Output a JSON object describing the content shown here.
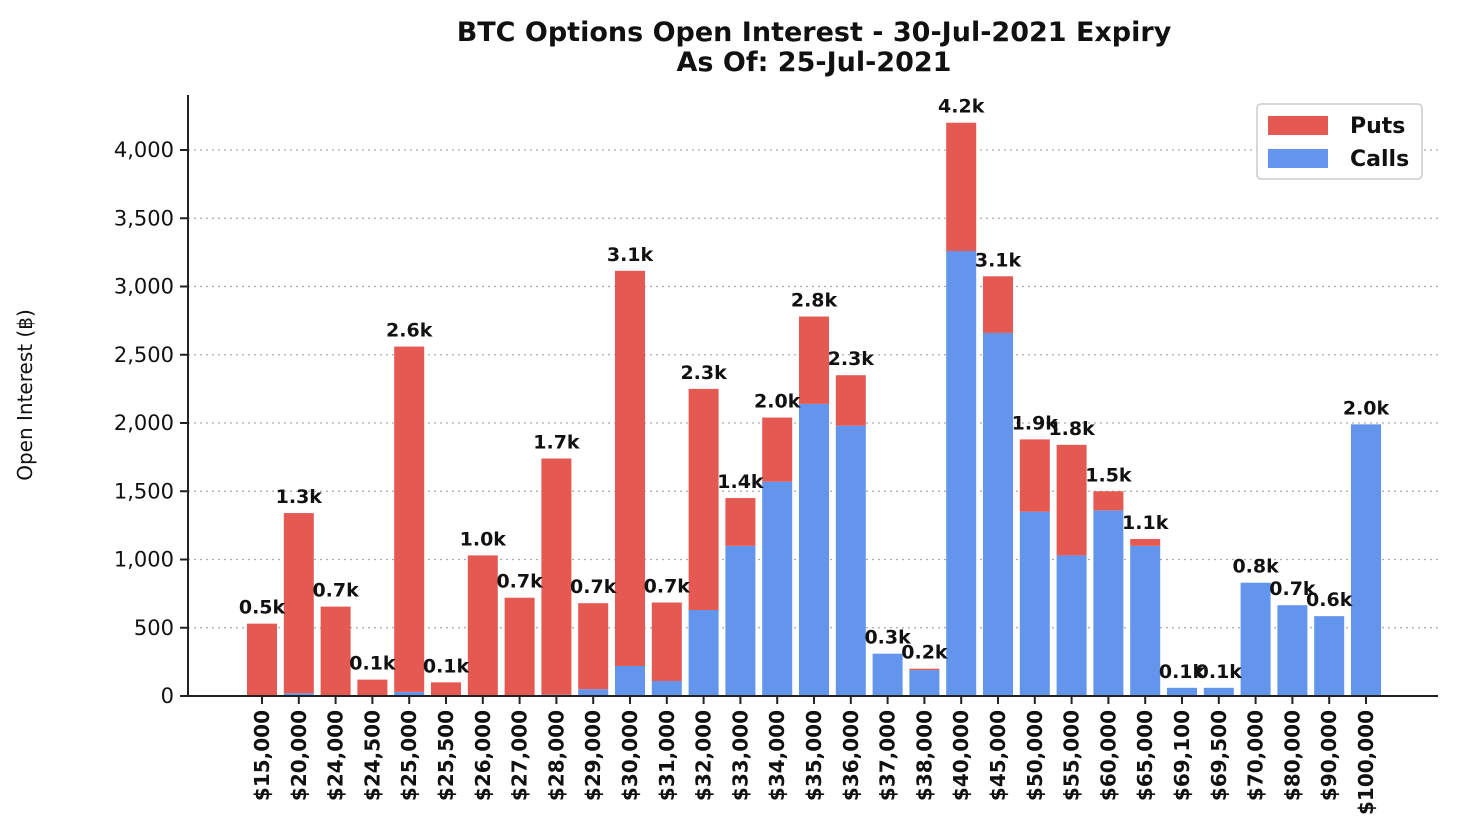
{
  "chart_data": {
    "type": "bar",
    "stacked": true,
    "title": "BTC Options Open Interest - 30-Jul-2021 Expiry",
    "subtitle": "As Of: 25-Jul-2021",
    "xlabel": "",
    "ylabel": "Open Interest (฿)",
    "ylim": [
      0,
      4400
    ],
    "yticks": [
      0,
      500,
      1000,
      1500,
      2000,
      2500,
      3000,
      3500,
      4000
    ],
    "ytick_labels": [
      "0",
      "500",
      "1,000",
      "1,500",
      "2,000",
      "2,500",
      "3,000",
      "3,500",
      "4,000"
    ],
    "grid": "horizontal-dotted",
    "legend_position": "top-right",
    "categories": [
      "$15,000",
      "$20,000",
      "$24,000",
      "$24,500",
      "$25,000",
      "$25,500",
      "$26,000",
      "$27,000",
      "$28,000",
      "$29,000",
      "$30,000",
      "$31,000",
      "$32,000",
      "$33,000",
      "$34,000",
      "$35,000",
      "$36,000",
      "$37,000",
      "$38,000",
      "$40,000",
      "$45,000",
      "$50,000",
      "$55,000",
      "$60,000",
      "$65,000",
      "$69,100",
      "$69,500",
      "$70,000",
      "$80,000",
      "$90,000",
      "$100,000"
    ],
    "series": [
      {
        "name": "Calls",
        "color": "#6495ED",
        "values": [
          0,
          20,
          0,
          0,
          30,
          0,
          0,
          0,
          10,
          50,
          220,
          110,
          630,
          1100,
          1570,
          2140,
          1980,
          310,
          190,
          3260,
          2660,
          1350,
          1030,
          1360,
          1100,
          60,
          60,
          830,
          665,
          585,
          1990
        ]
      },
      {
        "name": "Puts",
        "color": "#E45A53",
        "values": [
          530,
          1320,
          655,
          120,
          2530,
          100,
          1030,
          720,
          1730,
          630,
          2895,
          575,
          1620,
          350,
          470,
          640,
          370,
          0,
          10,
          940,
          415,
          530,
          810,
          140,
          50,
          0,
          0,
          0,
          0,
          0,
          0
        ]
      }
    ],
    "data_labels": [
      "0.5k",
      "1.3k",
      "0.7k",
      "0.1k",
      "2.6k",
      "0.1k",
      "1.0k",
      "0.7k",
      "1.7k",
      "0.7k",
      "3.1k",
      "0.7k",
      "2.3k",
      "1.4k",
      "2.0k",
      "2.8k",
      "2.3k",
      "0.3k",
      "0.2k",
      "4.2k",
      "3.1k",
      "1.9k",
      "1.8k",
      "1.5k",
      "1.1k",
      "0.1k",
      "0.1k",
      "0.8k",
      "0.7k",
      "0.6k",
      "2.0k"
    ],
    "legend": [
      "Puts",
      "Calls"
    ]
  }
}
